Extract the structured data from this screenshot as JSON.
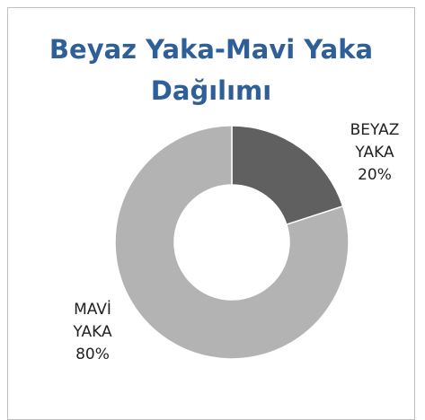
{
  "chart_data": {
    "type": "donut",
    "title": "Beyaz Yaka-Mavi Yaka Dağılımı",
    "categories": [
      "BEYAZ YAKA",
      "MAVİ YAKA"
    ],
    "values": [
      20,
      80
    ],
    "value_labels": [
      "20%",
      "80%"
    ],
    "colors": [
      "#606060",
      "#b3b3b3"
    ]
  }
}
